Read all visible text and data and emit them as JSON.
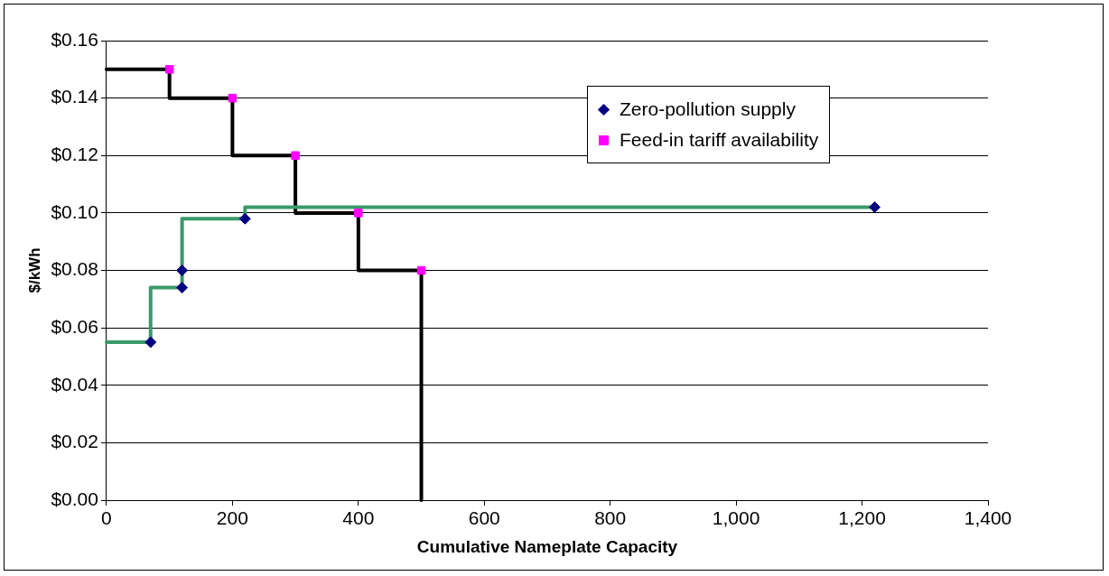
{
  "chart_data": {
    "type": "step",
    "xlabel": "Cumulative Nameplate Capacity",
    "ylabel": "$/kWh",
    "series": [
      {
        "color": "#3a9a6a",
        "marker": "none",
        "x": [
          0,
          70,
          120,
          220,
          1220
        ],
        "values": [
          0.055,
          0.055,
          0.074,
          0.098,
          0.102
        ]
      },
      {
        "color": "#000000",
        "marker": "none",
        "x": [
          0,
          100,
          200,
          300,
          400,
          500,
          500
        ],
        "values": [
          0.15,
          0.15,
          0.14,
          0.12,
          0.1,
          0.08,
          0
        ]
      },
      {
        "type": "scatter",
        "name": "Zero-pollution supply",
        "color": "#000080",
        "marker": "diamond",
        "x": [
          70,
          120,
          120,
          220,
          1220
        ],
        "values": [
          0.055,
          0.074,
          0.08,
          0.098,
          0.102
        ]
      },
      {
        "type": "scatter",
        "name": "Feed-in tariff availability",
        "color": "#ff00ff",
        "marker": "square",
        "x": [
          100,
          200,
          300,
          400,
          500
        ],
        "values": [
          0.15,
          0.14,
          0.12,
          0.1,
          0.08
        ]
      }
    ],
    "xlim": [
      0,
      1400
    ],
    "xticks": [
      0,
      200,
      400,
      600,
      800,
      {
        "value": 1000,
        "label": "1,000"
      },
      {
        "value": 1200,
        "label": "1,200"
      },
      {
        "value": 1400,
        "label": "1,400"
      }
    ],
    "ylim": [
      0,
      0.16
    ],
    "yticks": [
      {
        "value": 0,
        "label": "$0.00"
      },
      {
        "value": 0.02,
        "label": "$0.02"
      },
      {
        "value": 0.04,
        "label": "$0.04"
      },
      {
        "value": 0.06,
        "label": "$0.06"
      },
      {
        "value": 0.08,
        "label": "$0.08"
      },
      {
        "value": 0.1,
        "label": "$0.10"
      },
      {
        "value": 0.12,
        "label": "$0.12"
      },
      {
        "value": 0.14,
        "label": "$0.14"
      },
      {
        "value": 0.16,
        "label": "$0.16"
      }
    ],
    "grid": "y",
    "legend": "top right"
  }
}
